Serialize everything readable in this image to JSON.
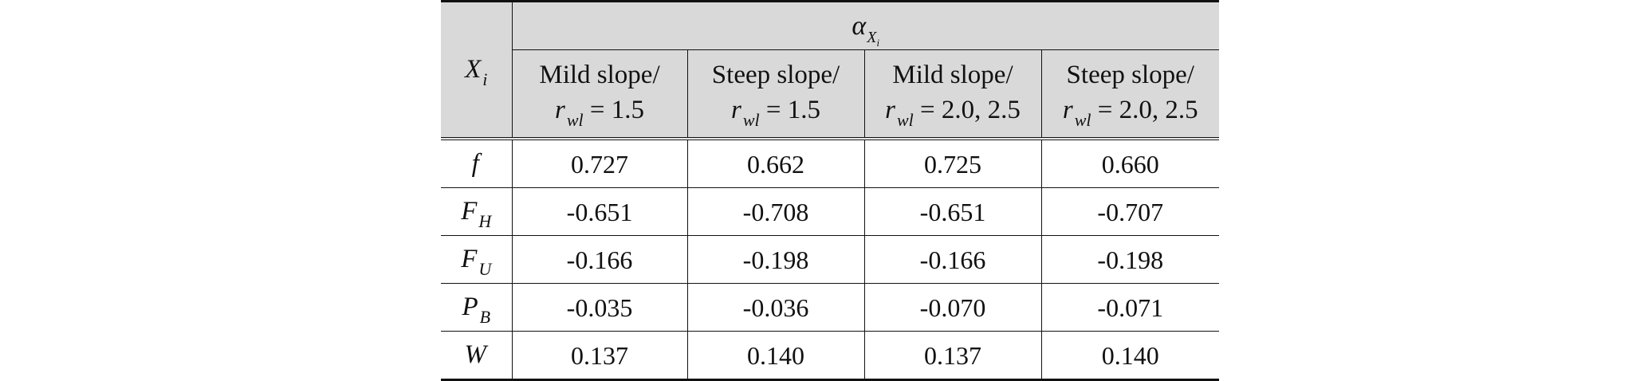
{
  "table": {
    "header": {
      "row_var_symbol": "X",
      "row_var_subscript": "i",
      "group_symbol": "α",
      "group_subscript": "X",
      "group_subsubscript": "i",
      "columns": [
        {
          "line1": "Mild slope/",
          "r_symbol": "r",
          "r_subscript": "wl",
          "value": " = 1.5"
        },
        {
          "line1": "Steep slope/",
          "r_symbol": "r",
          "r_subscript": "wl",
          "value": " = 1.5"
        },
        {
          "line1": "Mild slope/",
          "r_symbol": "r",
          "r_subscript": "wl",
          "value": " = 2.0, 2.5"
        },
        {
          "line1": "Steep slope/",
          "r_symbol": "r",
          "r_subscript": "wl",
          "value": " = 2.0, 2.5"
        }
      ]
    },
    "rows": [
      {
        "var": "f",
        "sub": "",
        "values": [
          "0.727",
          "0.662",
          "0.725",
          "0.660"
        ]
      },
      {
        "var": "F",
        "sub": "H",
        "values": [
          "-0.651",
          "-0.708",
          "-0.651",
          "-0.707"
        ]
      },
      {
        "var": "F",
        "sub": "U",
        "values": [
          "-0.166",
          "-0.198",
          "-0.166",
          "-0.198"
        ]
      },
      {
        "var": "P",
        "sub": "B",
        "values": [
          "-0.035",
          "-0.036",
          "-0.070",
          "-0.071"
        ]
      },
      {
        "var": "W",
        "sub": "",
        "values": [
          "0.137",
          "0.140",
          "0.137",
          "0.140"
        ]
      }
    ]
  }
}
